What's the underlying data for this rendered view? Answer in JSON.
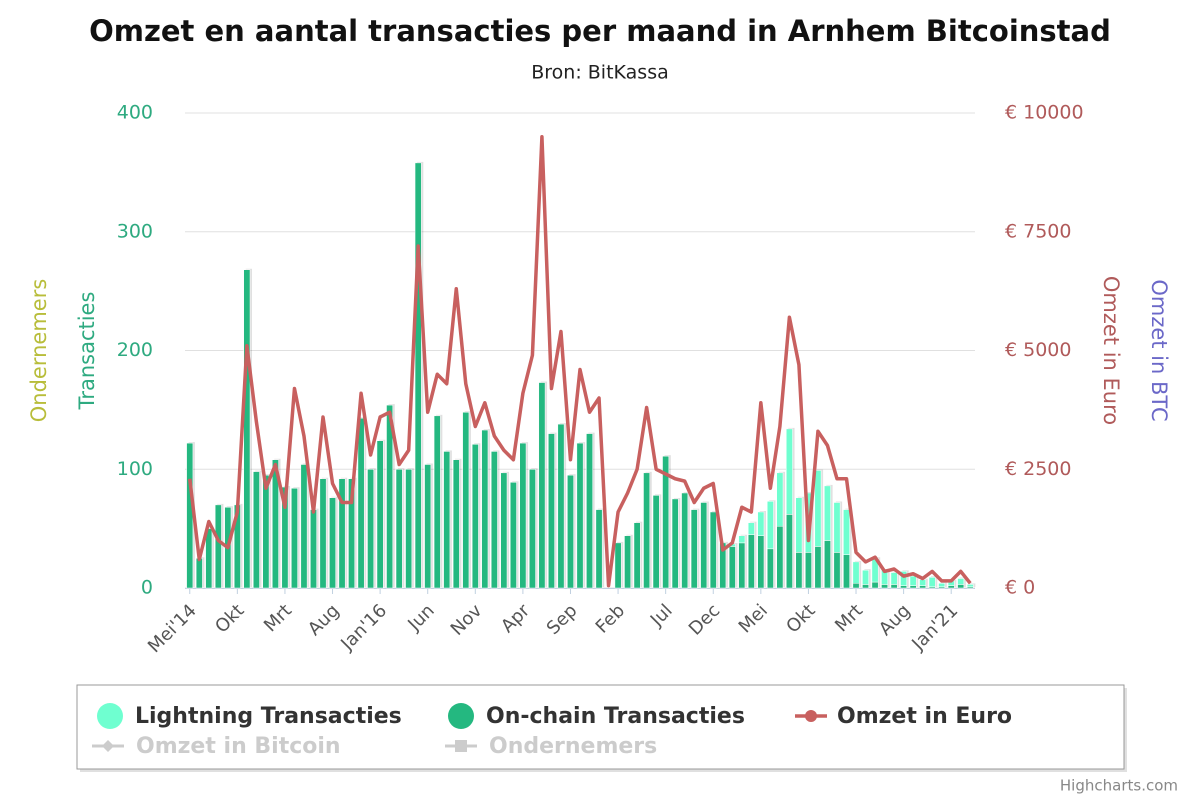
{
  "chart_data": {
    "type": "combo",
    "title": "Omzet en aantal transacties per maand in Arnhem Bitcoinstad",
    "subtitle": "Bron: BitKassa",
    "credits": "Highcharts.com",
    "categories": [
      "Mei'14",
      null,
      null,
      null,
      null,
      "Okt",
      null,
      null,
      null,
      null,
      "Mrt",
      null,
      null,
      null,
      null,
      "Aug",
      null,
      null,
      null,
      null,
      "Jan'16",
      null,
      null,
      null,
      null,
      "Jun",
      null,
      null,
      null,
      null,
      "Nov",
      null,
      null,
      null,
      null,
      "Apr",
      null,
      null,
      null,
      null,
      "Sep",
      null,
      null,
      null,
      null,
      "Feb",
      null,
      null,
      null,
      null,
      "Jul",
      null,
      null,
      null,
      null,
      "Dec",
      null,
      null,
      null,
      null,
      "Mei",
      null,
      null,
      null,
      null,
      "Okt",
      null,
      null,
      null,
      null,
      "Mrt",
      null,
      null,
      null,
      null,
      "Aug",
      null,
      null,
      null,
      null,
      "Jan'21",
      null,
      null
    ],
    "ylabel": "Transacties",
    "ylabel_color": "#2eaa80",
    "y2label": "Omzet in Euro",
    "y2label_color": "#b05a5a",
    "extra_axis_titles": [
      {
        "text": "Ondernemers",
        "color": "#b8bd3a"
      },
      {
        "text": "Omzet in BTC",
        "color": "#6b68c8"
      }
    ],
    "ylim": [
      0,
      400
    ],
    "yticks": [
      0,
      100,
      200,
      300,
      400
    ],
    "y2lim": [
      0,
      10000
    ],
    "y2ticks": [
      {
        "value": 0,
        "label": "€ 0"
      },
      {
        "value": 2500,
        "label": "€ 2500"
      },
      {
        "value": 5000,
        "label": "€ 5000"
      },
      {
        "value": 7500,
        "label": "€ 7500"
      },
      {
        "value": 10000,
        "label": "€ 10000"
      }
    ],
    "grid": true,
    "series": [
      {
        "name": "Lightning Transacties",
        "color": "#6fffd0",
        "kind": "column",
        "stack": true,
        "values": [
          0,
          0,
          0,
          0,
          0,
          0,
          0,
          0,
          0,
          0,
          0,
          0,
          0,
          0,
          0,
          0,
          0,
          0,
          0,
          0,
          0,
          0,
          0,
          0,
          0,
          0,
          0,
          0,
          0,
          0,
          0,
          0,
          0,
          0,
          0,
          0,
          0,
          0,
          0,
          0,
          0,
          0,
          0,
          0,
          0,
          0,
          0,
          0,
          0,
          0,
          0,
          0,
          0,
          0,
          0,
          0,
          0,
          2,
          6,
          10,
          20,
          40,
          45,
          72,
          46,
          50,
          64,
          46,
          42,
          38,
          18,
          12,
          20,
          12,
          10,
          12,
          8,
          5,
          8,
          3,
          4,
          5,
          2
        ]
      },
      {
        "name": "On-chain Transacties",
        "color": "#24b880",
        "kind": "column",
        "stack": true,
        "values": [
          122,
          25,
          50,
          70,
          68,
          70,
          268,
          98,
          95,
          108,
          85,
          84,
          104,
          66,
          92,
          76,
          92,
          92,
          143,
          100,
          124,
          154,
          100,
          100,
          358,
          104,
          145,
          115,
          108,
          148,
          121,
          133,
          115,
          97,
          89,
          122,
          100,
          173,
          130,
          138,
          95,
          122,
          130,
          66,
          0,
          38,
          44,
          55,
          97,
          78,
          111,
          75,
          80,
          66,
          72,
          64,
          38,
          35,
          38,
          45,
          44,
          33,
          52,
          62,
          30,
          30,
          35,
          40,
          30,
          28,
          4,
          3,
          5,
          3,
          3,
          2,
          2,
          2,
          1,
          1,
          2,
          3,
          1
        ]
      },
      {
        "name": "Omzet in Euro",
        "color": "#c8605f",
        "kind": "line",
        "axis": "y2",
        "values": [
          2300,
          600,
          1400,
          1000,
          850,
          1600,
          5100,
          3500,
          2100,
          2600,
          1700,
          4200,
          3200,
          1600,
          3600,
          2200,
          1800,
          1800,
          4100,
          2800,
          3600,
          3700,
          2600,
          2900,
          7200,
          3700,
          4500,
          4300,
          6300,
          4300,
          3400,
          3900,
          3200,
          2900,
          2700,
          4100,
          4900,
          9500,
          4200,
          5400,
          2700,
          4600,
          3700,
          4000,
          50,
          1600,
          2000,
          2500,
          3800,
          2500,
          2400,
          2300,
          2250,
          1800,
          2100,
          2200,
          800,
          950,
          1700,
          1600,
          3900,
          2100,
          3400,
          5700,
          4700,
          1000,
          3300,
          3000,
          2300,
          2300,
          750,
          550,
          650,
          350,
          400,
          250,
          300,
          200,
          350,
          150,
          150,
          350,
          100
        ]
      }
    ],
    "hidden_series": [
      {
        "name": "Omzet in Bitcoin",
        "marker": "diamond"
      },
      {
        "name": "Ondernemers",
        "marker": "square"
      }
    ]
  }
}
